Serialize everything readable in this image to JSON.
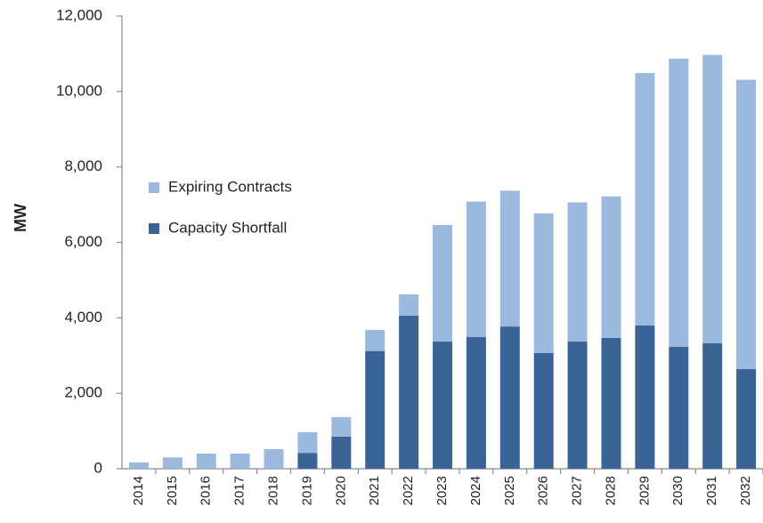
{
  "chart_data": {
    "type": "stacked_bar",
    "ylabel": "MW",
    "categories": [
      "2014",
      "2015",
      "2016",
      "2017",
      "2018",
      "2019",
      "2020",
      "2021",
      "2022",
      "2023",
      "2024",
      "2025",
      "2026",
      "2027",
      "2028",
      "2029",
      "2030",
      "2031",
      "2032"
    ],
    "series": [
      {
        "name": "Capacity Shortfall",
        "color": "#3a6496",
        "values": [
          0,
          0,
          0,
          0,
          0,
          420,
          850,
          3120,
          4060,
          3370,
          3490,
          3770,
          3070,
          3370,
          3470,
          3800,
          3230,
          3330,
          2640
        ]
      },
      {
        "name": "Expiring Contracts",
        "color": "#9ab9dd",
        "values": [
          170,
          300,
          400,
          400,
          520,
          550,
          520,
          560,
          560,
          3090,
          3590,
          3600,
          3700,
          3690,
          3750,
          6690,
          7640,
          7640,
          7670
        ]
      }
    ],
    "ylim": [
      0,
      12000
    ],
    "yticks": [
      0,
      {
        "value": 2000,
        "label": "2,000"
      },
      {
        "value": 4000,
        "label": "4,000"
      },
      {
        "value": 6000,
        "label": "6,000"
      },
      {
        "value": 8000,
        "label": "8,000"
      },
      {
        "value": 10000,
        "label": "10,000"
      },
      {
        "value": 12000,
        "label": "12,000"
      }
    ],
    "grid": false,
    "legend": "left"
  }
}
